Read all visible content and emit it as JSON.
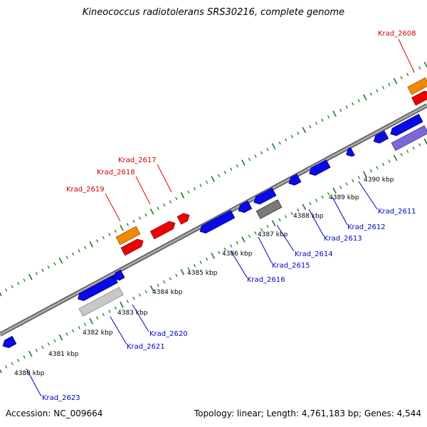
{
  "title": "Kineococcus radiotolerans SRS30216, complete genome",
  "footer": {
    "accession": "Accession: NC_009664",
    "topology": "Topology: linear; Length: 4,761,183 bp; Genes: 4,544"
  },
  "colors": {
    "backbone": "#808080",
    "tick": "#1a7a1a",
    "gene_forward_label": "#d00000",
    "gene_reverse_label": "#0000c0",
    "cds_blue": "#0a0ae6",
    "cds_red": "#ee0000",
    "rna_orange": "#f08a00",
    "pseudo_gray": "#7a7a7a",
    "pseudo_light": "#c8c8c8",
    "purple": "#7b68d8"
  },
  "scale": {
    "ticks_kbp": [
      "4380 kbp",
      "4381 kbp",
      "4382 kbp",
      "4383 kbp",
      "4384 kbp",
      "4385 kbp",
      "4386 kbp",
      "4387 kbp",
      "4388 kbp",
      "4389 kbp",
      "4390 kbp"
    ]
  },
  "labels": {
    "forward": [
      "Krad_2608",
      "Krad_2617",
      "Krad_2618",
      "Krad_2619"
    ],
    "reverse": [
      "Krad_2611",
      "Krad_2612",
      "Krad_2613",
      "Krad_2614",
      "Krad_2615",
      "Krad_2616",
      "Krad_2620",
      "Krad_2621",
      "Krad_2623"
    ]
  }
}
